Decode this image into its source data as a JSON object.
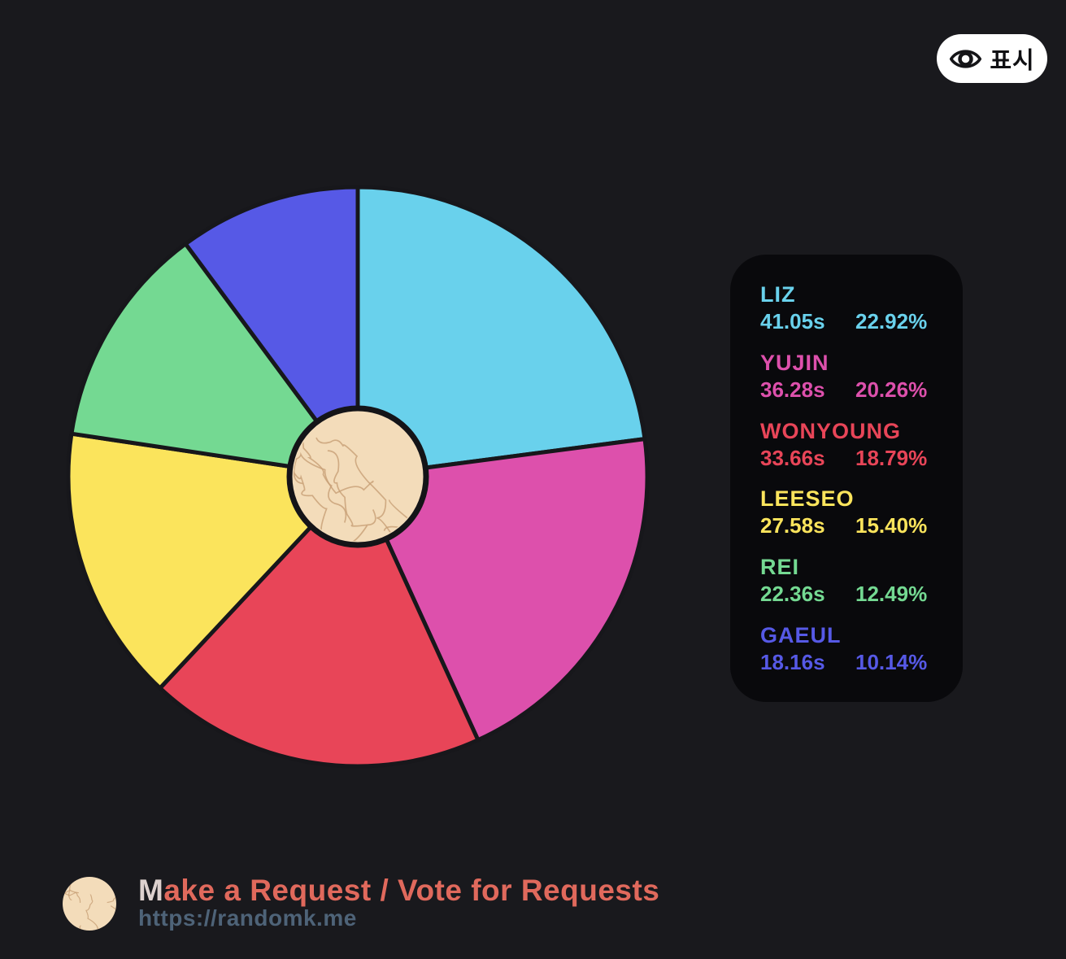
{
  "app": {
    "background_color": "#19191d",
    "panel_color": "#09090c"
  },
  "show_button": {
    "label": "표시",
    "icon": "eye-icon",
    "background": "#ffffff",
    "text_color": "#101013"
  },
  "chart_data": {
    "type": "pie",
    "title": "",
    "start_angle": "top (12 o'clock)",
    "direction": "clockwise",
    "center": "textured tan hub circle",
    "stroke_color": "#17171b",
    "hub_fill": "#f3dcba",
    "hub_line_color": "#c79f76",
    "hub_border_color": "#141418",
    "series": [
      {
        "name": "LIZ",
        "seconds": "41.05s",
        "percent": "22.92%",
        "value": 22.92,
        "color": "#69d1ec"
      },
      {
        "name": "YUJIN",
        "seconds": "36.28s",
        "percent": "20.26%",
        "value": 20.26,
        "color": "#dd50ac"
      },
      {
        "name": "WONYOUNG",
        "seconds": "33.66s",
        "percent": "18.79%",
        "value": 18.79,
        "color": "#e84558"
      },
      {
        "name": "LEESEO",
        "seconds": "27.58s",
        "percent": "15.40%",
        "value": 15.4,
        "color": "#fbe45c"
      },
      {
        "name": "REI",
        "seconds": "22.36s",
        "percent": "12.49%",
        "value": 12.49,
        "color": "#74d992"
      },
      {
        "name": "GAEUL",
        "seconds": "18.16s",
        "percent": "10.14%",
        "value": 10.14,
        "color": "#5659e6"
      }
    ]
  },
  "footer": {
    "title_first_letter": "M",
    "title_rest": "ake a Request / Vote for Requests",
    "title_color": "#e0695c",
    "url": "https://randomk.me",
    "url_color": "#4e6378"
  }
}
